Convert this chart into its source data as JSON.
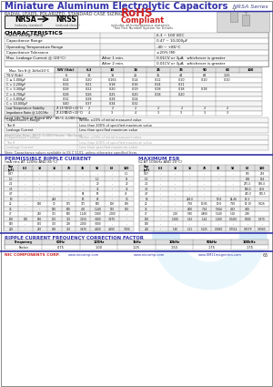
{
  "title": "Miniature Aluminum Electrolytic Capacitors",
  "series": "NRSA Series",
  "subtitle": "RADIAL LEADS, POLARIZED, STANDARD CASE SIZING",
  "bg_color": "#ffffff",
  "header_blue": "#3333aa",
  "char_rows": [
    [
      "Rated Voltage Range",
      "6.3 ~ 100 VDC"
    ],
    [
      "Capacitance Range",
      "0.47 ~ 10,000μF"
    ],
    [
      "Operating Temperature Range",
      "-40 ~ +85°C"
    ],
    [
      "Capacitance Tolerance",
      "±20% (M)"
    ],
    [
      "Max. Leakage Current @ (20°C)",
      "After 1 min.",
      "0.01CV or 3μA   whichever is greater"
    ],
    [
      "",
      "After 2 min.",
      "0.01CV or 3μA   whichever is greater"
    ]
  ],
  "td_headers": [
    "WV (Vdc)",
    "6.3",
    "10",
    "16",
    "25",
    "35",
    "50",
    "63",
    "100"
  ],
  "td_rows": [
    [
      "TS.V (V-dc)",
      "6",
      "10",
      "16",
      "25",
      "35",
      "44",
      "63",
      "3.25"
    ],
    [
      "C ≤ 1,000μF",
      "0.24",
      "0.20",
      "0.165",
      "0.14",
      "0.12",
      "0.10",
      "0.10",
      "0.10"
    ],
    [
      "C = 2,200μF",
      "0.32",
      "0.21",
      "0.18",
      "0.16",
      "0.14",
      "0.11",
      "",
      ""
    ],
    [
      "C = 3,300μF",
      "0.28",
      "0.22",
      "0.20",
      "0.19",
      "0.18",
      "0.18",
      "0.18",
      ""
    ],
    [
      "C = 4,700μF",
      "0.28",
      "0.26",
      "0.25",
      "0.20",
      "0.18",
      "0.20",
      "",
      ""
    ],
    [
      "C = 6,800μF",
      "0.32",
      "0.28",
      "0.28",
      "0.24",
      "",
      "",
      "",
      ""
    ],
    [
      "C = 10,000μF",
      "0.40",
      "0.37",
      "0.34",
      "0.32",
      "",
      "",
      "",
      ""
    ]
  ],
  "lt_rows": [
    [
      "Z(-25°C)/Z(+20°C)",
      "3",
      "2",
      "2",
      "2",
      "2",
      "2",
      "2",
      "2"
    ],
    [
      "Z(-40°C)/Z(+20°C)",
      "10",
      "4",
      "3",
      "4",
      "3",
      "3",
      "3",
      "3"
    ]
  ],
  "ll_rows": [
    [
      "Capacitance Change",
      "Within ±20% of initial measured value"
    ],
    [
      "Tan δ",
      "Less than 200% of specified maximum value"
    ],
    [
      "Leakage Current",
      "Less than specified maximum value"
    ]
  ],
  "sl_rows": [
    [
      "Capacitance Change",
      "Within ±20% of initial measured value"
    ],
    [
      "Tan δ",
      "Less than 200% of specified maximum value"
    ],
    [
      "Leakage Current",
      "Less than specified maximum value"
    ]
  ],
  "ripple_rows": [
    [
      "0.47",
      "-",
      "-",
      "-",
      "-",
      "-",
      "-",
      "-",
      "1.1"
    ],
    [
      "1.0",
      "-",
      "-",
      "-",
      "-",
      "-",
      "1.2",
      "-",
      "55"
    ],
    [
      "2.2",
      "-",
      "-",
      "-",
      "-",
      "-",
      "20",
      "-",
      "20"
    ],
    [
      "3.3",
      "-",
      "-",
      "-",
      "-",
      "-",
      "35",
      "-",
      "35"
    ],
    [
      "4.7",
      "-",
      "-",
      "-",
      "-",
      "58",
      "50",
      "-",
      "45"
    ],
    [
      "10",
      "-",
      "-",
      "248",
      "-",
      "50",
      "65",
      "-",
      "70"
    ],
    [
      "22",
      "-",
      "160",
      "70",
      "175",
      "375",
      "500",
      "100",
      "100"
    ],
    [
      "33",
      "-",
      "-",
      "150",
      "500",
      "430",
      "1,140",
      "170",
      "170"
    ],
    [
      "47",
      "-",
      "250",
      "315",
      "500",
      "1,140",
      "1,900",
      "2,000",
      "-"
    ],
    [
      "100",
      "130",
      "180",
      "170",
      "310",
      "3,150",
      "3,000",
      "3,970",
      "-"
    ],
    [
      "150",
      "-",
      "170",
      "310",
      "200",
      "2,000",
      "3,000",
      "-",
      "-"
    ],
    [
      "220",
      "-",
      "210",
      "860",
      "370",
      "3,670",
      "4,200",
      "4,300",
      "7,500"
    ]
  ],
  "esr_rows": [
    [
      "0.47",
      "-",
      "-",
      "-",
      "-",
      "-",
      "-",
      "855",
      "293"
    ],
    [
      "1.0",
      "-",
      "-",
      "-",
      "-",
      "-",
      "-",
      "668",
      "134"
    ],
    [
      "2.2",
      "-",
      "-",
      "-",
      "-",
      "-",
      "-",
      "275.4",
      "160.4"
    ],
    [
      "3.3",
      "-",
      "-",
      "-",
      "-",
      "-",
      "-",
      "500.0",
      "40.8"
    ],
    [
      "4.7",
      "-",
      "-",
      "-",
      "-",
      "-",
      "-",
      "325.0",
      "185.5"
    ],
    [
      "10",
      "-",
      "-",
      "248.0",
      "-",
      "19.8",
      "14.46",
      "13.3",
      ""
    ],
    [
      "22",
      "-",
      "-",
      "7.58",
      "10.85",
      "10.8",
      "7.58",
      "15.19",
      "5.026"
    ],
    [
      "33",
      "-",
      "-",
      "8.00",
      "7.34",
      "5.944",
      "4.53",
      "4.00",
      ""
    ],
    [
      "47",
      "-",
      "2.00",
      "5.80",
      "4.800",
      "5.240",
      "5.18",
      "2.80",
      ""
    ],
    [
      "100",
      "-",
      "1.580",
      "1.43",
      "1.24",
      "1.100",
      "0.0400",
      "0.500",
      "0.370"
    ],
    [
      "150",
      "-",
      "-",
      "-",
      "-",
      "-",
      "-",
      "-",
      "-"
    ],
    [
      "220",
      "-",
      "1.40",
      "1.21",
      "1.025",
      "0.0880",
      "0.7514",
      "0.8379",
      "0.3960"
    ]
  ],
  "freq_headers": [
    "Frequency",
    "60Hz",
    "120Hz",
    "1kHz",
    "10kHz",
    "50kHz",
    "100kHz"
  ],
  "freq_vals": [
    "Factor",
    "0.75",
    "1.00",
    "1.25",
    "1.50",
    "1.75",
    "1.75"
  ]
}
